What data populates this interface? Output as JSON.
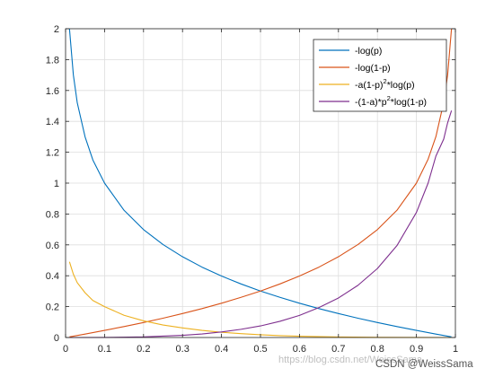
{
  "chart_data": {
    "type": "line",
    "title": "",
    "xlabel": "",
    "ylabel": "",
    "xlim": [
      0,
      1
    ],
    "ylim": [
      0,
      2
    ],
    "xticks": [
      0,
      0.1,
      0.2,
      0.3,
      0.4,
      0.5,
      0.6,
      0.7,
      0.8,
      0.9,
      1
    ],
    "xtick_labels": [
      "0",
      "0.1",
      "0.2",
      "0.3",
      "0.4",
      "0.5",
      "0.6",
      "0.7",
      "0.8",
      "0.9",
      "1"
    ],
    "yticks": [
      0,
      0.2,
      0.4,
      0.6,
      0.8,
      1,
      1.2,
      1.4,
      1.6,
      1.8,
      2
    ],
    "ytick_labels": [
      "0",
      "0.2",
      "0.4",
      "0.6",
      "0.8",
      "1",
      "1.2",
      "1.4",
      "1.6",
      "1.8",
      "2"
    ],
    "grid": true,
    "legend_position": "top-right",
    "series": [
      {
        "name": "-log(p)",
        "legend_parts": [
          {
            "t": "-log(p)"
          }
        ],
        "color": "#0072BD",
        "x": [
          0.01,
          0.02,
          0.03,
          0.05,
          0.07,
          0.1,
          0.15,
          0.2,
          0.25,
          0.3,
          0.35,
          0.4,
          0.45,
          0.5,
          0.55,
          0.6,
          0.65,
          0.7,
          0.75,
          0.8,
          0.85,
          0.9,
          0.95,
          0.99
        ],
        "y": [
          2.0,
          1.7,
          1.52,
          1.3,
          1.15,
          1.0,
          0.824,
          0.699,
          0.602,
          0.523,
          0.456,
          0.398,
          0.347,
          0.301,
          0.26,
          0.222,
          0.187,
          0.155,
          0.125,
          0.097,
          0.071,
          0.046,
          0.022,
          0.004
        ]
      },
      {
        "name": "-log(1-p)",
        "legend_parts": [
          {
            "t": "-log(1-p)"
          }
        ],
        "color": "#D95319",
        "x": [
          0.01,
          0.05,
          0.1,
          0.15,
          0.2,
          0.25,
          0.3,
          0.35,
          0.4,
          0.45,
          0.5,
          0.55,
          0.6,
          0.65,
          0.7,
          0.75,
          0.8,
          0.85,
          0.9,
          0.93,
          0.95,
          0.97,
          0.98,
          0.99
        ],
        "y": [
          0.004,
          0.022,
          0.046,
          0.071,
          0.097,
          0.125,
          0.155,
          0.187,
          0.222,
          0.26,
          0.301,
          0.347,
          0.398,
          0.456,
          0.523,
          0.602,
          0.699,
          0.824,
          1.0,
          1.155,
          1.301,
          1.523,
          1.699,
          2.0
        ]
      },
      {
        "name": "-a(1-p)^2*log(p)",
        "legend_parts": [
          {
            "t": "-a(1-p)"
          },
          {
            "t": "2",
            "sup": true
          },
          {
            "t": "*log(p)"
          }
        ],
        "color": "#EDB120",
        "x": [
          0.01,
          0.02,
          0.03,
          0.05,
          0.07,
          0.1,
          0.15,
          0.2,
          0.25,
          0.3,
          0.35,
          0.4,
          0.45,
          0.5,
          0.55,
          0.6,
          0.7,
          0.8,
          0.9,
          0.99
        ],
        "y": [
          0.49,
          0.41,
          0.355,
          0.29,
          0.24,
          0.2,
          0.144,
          0.108,
          0.081,
          0.062,
          0.046,
          0.034,
          0.025,
          0.018,
          0.012,
          0.0085,
          0.0035,
          0.001,
          0.0001,
          0.0
        ]
      },
      {
        "name": "-(1-a)*p^2*log(1-p)",
        "legend_parts": [
          {
            "t": "-(1-a)*p"
          },
          {
            "t": "2",
            "sup": true
          },
          {
            "t": "*log(1-p)"
          }
        ],
        "color": "#7E2F8E",
        "x": [
          0.01,
          0.1,
          0.2,
          0.3,
          0.35,
          0.4,
          0.45,
          0.5,
          0.55,
          0.6,
          0.65,
          0.7,
          0.75,
          0.8,
          0.85,
          0.9,
          0.93,
          0.95,
          0.97,
          0.98,
          0.99
        ],
        "y": [
          0.0,
          0.0005,
          0.004,
          0.014,
          0.023,
          0.036,
          0.053,
          0.075,
          0.105,
          0.143,
          0.194,
          0.256,
          0.338,
          0.447,
          0.595,
          0.81,
          1.0,
          1.175,
          1.285,
          1.39,
          1.47
        ]
      }
    ]
  },
  "watermark": {
    "faint_text": "https://blog.csdn.net/WeissSama",
    "credit": "CSDN @WeissSama"
  }
}
